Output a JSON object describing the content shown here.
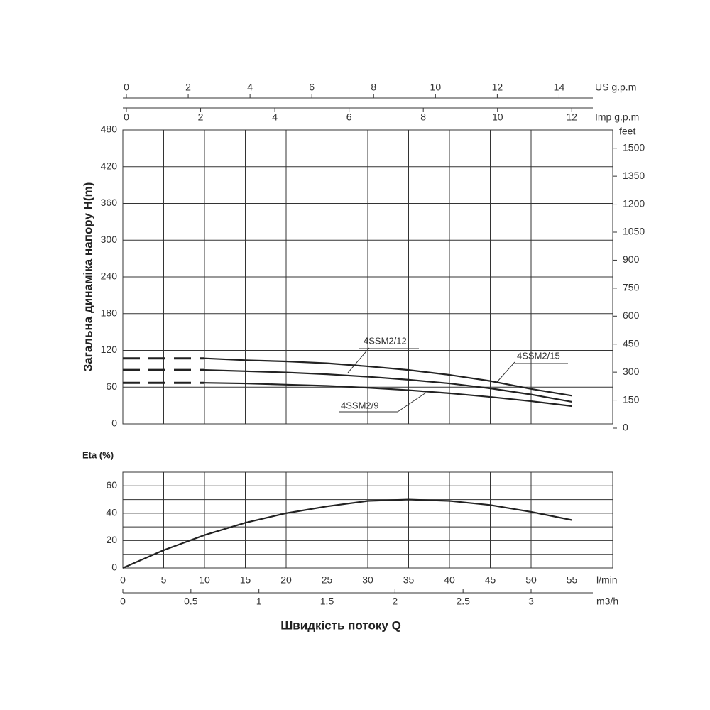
{
  "chart_data": [
    {
      "type": "line",
      "y_label": "Загальна динаміка напору H(m)",
      "xlim": [
        0,
        60
      ],
      "xticks": [
        0,
        5,
        10,
        15,
        20,
        25,
        30,
        35,
        40,
        45,
        50,
        55
      ],
      "ylim": [
        0,
        480
      ],
      "yticks": [
        0,
        60,
        120,
        180,
        240,
        300,
        360,
        420,
        480
      ],
      "y2_label": "feet",
      "y2lim": [
        0,
        1575
      ],
      "y2ticks": [
        0,
        150,
        300,
        450,
        600,
        750,
        900,
        1050,
        1200,
        1350,
        1500
      ],
      "top_axes": [
        {
          "label": "US g.p.m",
          "xlim": [
            0,
            15.85
          ],
          "xticks": [
            0,
            2,
            4,
            6,
            8,
            10,
            12,
            14
          ]
        },
        {
          "label": "Imp g.p.m",
          "xlim": [
            0,
            13.2
          ],
          "xticks": [
            0,
            2,
            4,
            6,
            8,
            10,
            12
          ]
        }
      ],
      "dashed_to_zero": true,
      "grid": true,
      "x": [
        10,
        15,
        20,
        25,
        30,
        35,
        40,
        45,
        50,
        55
      ],
      "series": [
        {
          "name": "4SSM2/15",
          "color": "#222222",
          "values": [
            107,
            104,
            102,
            99,
            94,
            88,
            80,
            70,
            57,
            46
          ]
        },
        {
          "name": "4SSM2/12",
          "color": "#222222",
          "values": [
            88,
            86,
            84,
            81,
            77,
            72,
            66,
            58,
            48,
            36
          ]
        },
        {
          "name": "4SSM2/9",
          "color": "#222222",
          "values": [
            67,
            66,
            64,
            62,
            59,
            55,
            50,
            44,
            37,
            29
          ]
        }
      ]
    },
    {
      "type": "line",
      "y_label": "Eta (%)",
      "x_title": "Швидкість потоку Q",
      "xlim": [
        0,
        60
      ],
      "xticks": [
        0,
        5,
        10,
        15,
        20,
        25,
        30,
        35,
        40,
        45,
        50,
        55
      ],
      "x_label": "l/min",
      "x2lim": [
        0,
        3.6
      ],
      "x2ticks": [
        0,
        0.5,
        1,
        1.5,
        2,
        2.5,
        3
      ],
      "x2_label": "m3/h",
      "ylim": [
        0,
        70
      ],
      "yticks": [
        0,
        20,
        40,
        60
      ],
      "ygrid": [
        10,
        30,
        50
      ],
      "grid": true,
      "x": [
        0,
        5,
        10,
        15,
        20,
        25,
        30,
        35,
        40,
        45,
        50,
        55
      ],
      "color": "#222222",
      "values": [
        0,
        13,
        24,
        33,
        40,
        45,
        49,
        50,
        49,
        46,
        41,
        35
      ]
    }
  ]
}
